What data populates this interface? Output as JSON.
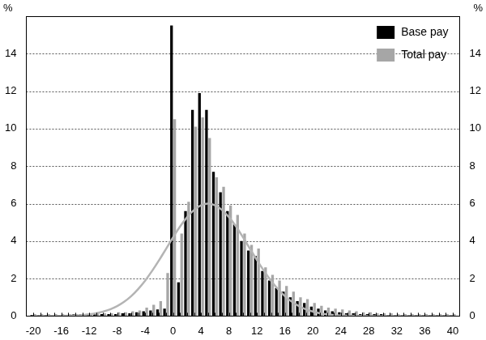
{
  "chart_data": {
    "type": "bar",
    "ylabel": "%",
    "y2label": "%",
    "x": [
      -20,
      -19,
      -18,
      -17,
      -16,
      -15,
      -14,
      -13,
      -12,
      -11,
      -10,
      -9,
      -8,
      -7,
      -6,
      -5,
      -4,
      -3,
      -2,
      -1,
      0,
      1,
      2,
      3,
      4,
      5,
      6,
      7,
      8,
      9,
      10,
      11,
      12,
      13,
      14,
      15,
      16,
      17,
      18,
      19,
      20,
      21,
      22,
      23,
      24,
      25,
      26,
      27,
      28,
      29,
      30,
      31,
      32,
      33,
      34,
      35,
      36,
      37,
      38,
      39,
      40
    ],
    "series": [
      {
        "name": "Base pay",
        "color": "#000000",
        "values": [
          0.05,
          0.05,
          0.05,
          0.05,
          0.05,
          0.05,
          0.1,
          0.1,
          0.1,
          0.1,
          0.1,
          0.1,
          0.1,
          0.15,
          0.15,
          0.2,
          0.25,
          0.3,
          0.35,
          0.4,
          15.5,
          1.8,
          5.6,
          11.0,
          11.9,
          11.0,
          7.7,
          6.6,
          5.6,
          4.9,
          4.0,
          3.5,
          3.2,
          2.4,
          1.9,
          1.5,
          1.3,
          1.0,
          0.8,
          0.7,
          0.5,
          0.4,
          0.3,
          0.25,
          0.2,
          0.15,
          0.15,
          0.1,
          0.1,
          0.1,
          0.1,
          0.05,
          0.05,
          0.05,
          0.05,
          0.05,
          0.05,
          0.05,
          0.05,
          0.05,
          0.05
        ]
      },
      {
        "name": "Total pay",
        "color": "#a6a6a6",
        "values": [
          0.1,
          0.1,
          0.1,
          0.1,
          0.1,
          0.1,
          0.1,
          0.1,
          0.1,
          0.15,
          0.15,
          0.15,
          0.2,
          0.2,
          0.25,
          0.3,
          0.45,
          0.6,
          0.8,
          2.3,
          10.5,
          4.4,
          6.1,
          10.1,
          10.6,
          9.5,
          7.4,
          6.9,
          5.9,
          5.4,
          4.4,
          3.8,
          3.6,
          2.6,
          2.2,
          1.9,
          1.6,
          1.3,
          1.0,
          0.9,
          0.7,
          0.55,
          0.45,
          0.4,
          0.35,
          0.3,
          0.25,
          0.2,
          0.2,
          0.15,
          0.15,
          0.15,
          0.1,
          0.1,
          0.1,
          0.1,
          0.1,
          0.1,
          0.1,
          0.1,
          0.1
        ]
      },
      {
        "type": "line",
        "color": "#b4b4b4",
        "values": [
          0,
          0,
          0,
          0.01,
          0.01,
          0.02,
          0.03,
          0.05,
          0.09,
          0.15,
          0.24,
          0.36,
          0.53,
          0.76,
          1.06,
          1.44,
          1.89,
          2.41,
          2.98,
          3.59,
          4.2,
          4.78,
          5.27,
          5.66,
          5.91,
          6,
          5.91,
          5.66,
          5.27,
          4.78,
          4.2,
          3.59,
          2.98,
          2.41,
          1.89,
          1.44,
          1.06,
          0.76,
          0.53,
          0.36,
          0.24,
          0.15,
          0.09,
          0.05,
          0.03,
          0.02,
          0.01,
          0.01,
          0,
          0,
          0,
          0,
          0,
          0,
          0,
          0,
          0,
          0,
          0,
          0,
          0
        ]
      }
    ],
    "xlim": [
      -21,
      41
    ],
    "xticks": [
      -20,
      -16,
      -12,
      -8,
      -4,
      0,
      4,
      8,
      12,
      16,
      20,
      24,
      28,
      32,
      36,
      40
    ],
    "ylim": [
      0,
      16
    ],
    "yticks": [
      0,
      2,
      4,
      6,
      8,
      10,
      12,
      14
    ],
    "y2lim": [
      0,
      16
    ],
    "y2ticks": [
      0,
      2,
      4,
      6,
      8,
      10,
      12,
      14
    ],
    "grid": true,
    "legend": "upper right"
  }
}
